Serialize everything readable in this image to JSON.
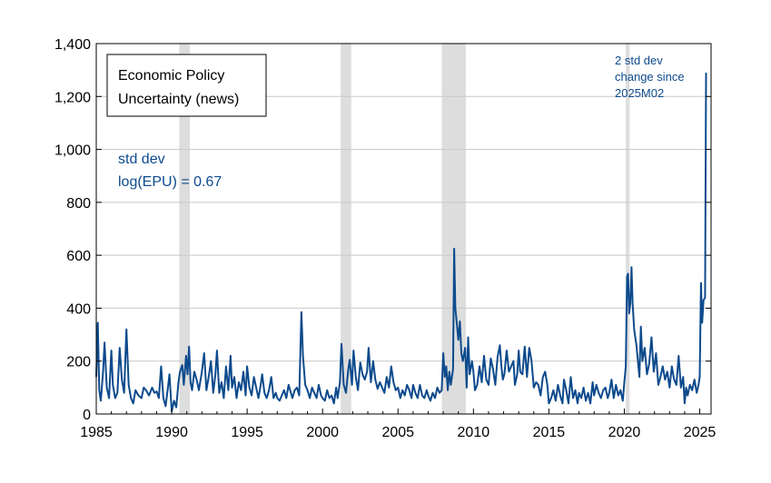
{
  "chart_data": {
    "type": "line",
    "title": "",
    "xlabel": "",
    "ylabel": "",
    "xlim": [
      1985,
      2025.75
    ],
    "ylim": [
      0,
      1400
    ],
    "grid": "horizontal",
    "x_ticks": [
      1985,
      1990,
      1995,
      2000,
      2005,
      2010,
      2015,
      2020,
      2025
    ],
    "x_tick_labels": [
      "1985",
      "1990",
      "1995",
      "2000",
      "2005",
      "2010",
      "2015",
      "2020",
      "2025"
    ],
    "y_ticks": [
      0,
      200,
      400,
      600,
      800,
      1000,
      1200,
      1400
    ],
    "y_tick_labels": [
      "0",
      "200",
      "400",
      "600",
      "800",
      "1,000",
      "1,200",
      "1,400"
    ],
    "legend": {
      "placement": "top-left",
      "lines": [
        "Economic Policy",
        "Uncertainty (news)"
      ]
    },
    "annotations": [
      {
        "lines": [
          "std dev",
          "log(EPU) = 0.67"
        ],
        "placement": "upper-left",
        "color": "#0d4a8c"
      },
      {
        "lines": [
          "2 std dev",
          "change since",
          "2025M02"
        ],
        "placement": "top-right",
        "color": "#0d4a8c"
      }
    ],
    "recession_shading": [
      [
        1990.5,
        1991.2
      ],
      [
        2001.2,
        2001.9
      ],
      [
        2007.9,
        2009.5
      ],
      [
        2020.1,
        2020.35
      ]
    ],
    "series": [
      {
        "color": "#0d4a8c",
        "points": [
          [
            1985.0,
            140
          ],
          [
            1985.1,
            345
          ],
          [
            1985.2,
            90
          ],
          [
            1985.3,
            50
          ],
          [
            1985.45,
            160
          ],
          [
            1985.55,
            270
          ],
          [
            1985.7,
            100
          ],
          [
            1985.85,
            60
          ],
          [
            1986.0,
            240
          ],
          [
            1986.1,
            110
          ],
          [
            1986.25,
            60
          ],
          [
            1986.4,
            80
          ],
          [
            1986.55,
            250
          ],
          [
            1986.7,
            130
          ],
          [
            1986.85,
            80
          ],
          [
            1987.0,
            320
          ],
          [
            1987.15,
            110
          ],
          [
            1987.3,
            60
          ],
          [
            1987.45,
            40
          ],
          [
            1987.6,
            90
          ],
          [
            1987.8,
            70
          ],
          [
            1988.0,
            60
          ],
          [
            1988.15,
            100
          ],
          [
            1988.3,
            90
          ],
          [
            1988.5,
            70
          ],
          [
            1988.7,
            100
          ],
          [
            1988.85,
            80
          ],
          [
            1989.0,
            85
          ],
          [
            1989.15,
            60
          ],
          [
            1989.3,
            180
          ],
          [
            1989.45,
            60
          ],
          [
            1989.6,
            30
          ],
          [
            1989.75,
            100
          ],
          [
            1989.85,
            150
          ],
          [
            1990.0,
            10
          ],
          [
            1990.15,
            50
          ],
          [
            1990.3,
            25
          ],
          [
            1990.45,
            120
          ],
          [
            1990.55,
            160
          ],
          [
            1990.7,
            185
          ],
          [
            1990.8,
            110
          ],
          [
            1990.95,
            220
          ],
          [
            1991.05,
            150
          ],
          [
            1991.15,
            255
          ],
          [
            1991.25,
            120
          ],
          [
            1991.35,
            90
          ],
          [
            1991.5,
            160
          ],
          [
            1991.65,
            130
          ],
          [
            1991.8,
            90
          ],
          [
            1992.0,
            160
          ],
          [
            1992.15,
            230
          ],
          [
            1992.3,
            90
          ],
          [
            1992.45,
            140
          ],
          [
            1992.6,
            200
          ],
          [
            1992.75,
            80
          ],
          [
            1992.9,
            150
          ],
          [
            1993.0,
            240
          ],
          [
            1993.15,
            80
          ],
          [
            1993.3,
            120
          ],
          [
            1993.45,
            60
          ],
          [
            1993.6,
            180
          ],
          [
            1993.75,
            90
          ],
          [
            1993.9,
            220
          ],
          [
            1994.0,
            100
          ],
          [
            1994.15,
            140
          ],
          [
            1994.3,
            60
          ],
          [
            1994.45,
            120
          ],
          [
            1994.6,
            90
          ],
          [
            1994.75,
            160
          ],
          [
            1994.9,
            70
          ],
          [
            1995.0,
            180
          ],
          [
            1995.15,
            100
          ],
          [
            1995.3,
            70
          ],
          [
            1995.45,
            140
          ],
          [
            1995.6,
            100
          ],
          [
            1995.75,
            60
          ],
          [
            1995.9,
            110
          ],
          [
            1996.0,
            150
          ],
          [
            1996.15,
            80
          ],
          [
            1996.3,
            60
          ],
          [
            1996.45,
            90
          ],
          [
            1996.6,
            140
          ],
          [
            1996.75,
            60
          ],
          [
            1996.9,
            80
          ],
          [
            1997.0,
            60
          ],
          [
            1997.15,
            50
          ],
          [
            1997.3,
            70
          ],
          [
            1997.45,
            90
          ],
          [
            1997.6,
            60
          ],
          [
            1997.75,
            110
          ],
          [
            1997.9,
            80
          ],
          [
            1998.0,
            60
          ],
          [
            1998.15,
            90
          ],
          [
            1998.3,
            100
          ],
          [
            1998.45,
            70
          ],
          [
            1998.6,
            385
          ],
          [
            1998.7,
            220
          ],
          [
            1998.85,
            110
          ],
          [
            1999.0,
            90
          ],
          [
            1999.15,
            60
          ],
          [
            1999.3,
            100
          ],
          [
            1999.45,
            80
          ],
          [
            1999.6,
            60
          ],
          [
            1999.75,
            110
          ],
          [
            1999.9,
            70
          ],
          [
            2000.0,
            60
          ],
          [
            2000.15,
            50
          ],
          [
            2000.3,
            90
          ],
          [
            2000.45,
            60
          ],
          [
            2000.6,
            70
          ],
          [
            2000.75,
            40
          ],
          [
            2000.9,
            100
          ],
          [
            2001.0,
            60
          ],
          [
            2001.15,
            120
          ],
          [
            2001.25,
            265
          ],
          [
            2001.4,
            110
          ],
          [
            2001.55,
            80
          ],
          [
            2001.7,
            165
          ],
          [
            2001.8,
            205
          ],
          [
            2001.95,
            110
          ],
          [
            2002.05,
            240
          ],
          [
            2002.2,
            140
          ],
          [
            2002.35,
            90
          ],
          [
            2002.5,
            195
          ],
          [
            2002.65,
            150
          ],
          [
            2002.8,
            130
          ],
          [
            2002.95,
            160
          ],
          [
            2003.05,
            250
          ],
          [
            2003.2,
            120
          ],
          [
            2003.35,
            200
          ],
          [
            2003.5,
            130
          ],
          [
            2003.65,
            95
          ],
          [
            2003.8,
            120
          ],
          [
            2003.95,
            100
          ],
          [
            2004.1,
            80
          ],
          [
            2004.25,
            140
          ],
          [
            2004.4,
            100
          ],
          [
            2004.55,
            180
          ],
          [
            2004.7,
            120
          ],
          [
            2004.85,
            90
          ],
          [
            2005.0,
            100
          ],
          [
            2005.15,
            60
          ],
          [
            2005.3,
            90
          ],
          [
            2005.45,
            70
          ],
          [
            2005.6,
            110
          ],
          [
            2005.75,
            90
          ],
          [
            2005.9,
            60
          ],
          [
            2006.0,
            110
          ],
          [
            2006.15,
            80
          ],
          [
            2006.3,
            60
          ],
          [
            2006.45,
            110
          ],
          [
            2006.6,
            70
          ],
          [
            2006.75,
            60
          ],
          [
            2006.9,
            90
          ],
          [
            2007.0,
            70
          ],
          [
            2007.15,
            50
          ],
          [
            2007.3,
            80
          ],
          [
            2007.45,
            60
          ],
          [
            2007.6,
            100
          ],
          [
            2007.75,
            80
          ],
          [
            2007.9,
            90
          ],
          [
            2008.0,
            230
          ],
          [
            2008.1,
            140
          ],
          [
            2008.2,
            180
          ],
          [
            2008.3,
            90
          ],
          [
            2008.4,
            160
          ],
          [
            2008.5,
            110
          ],
          [
            2008.65,
            170
          ],
          [
            2008.72,
            625
          ],
          [
            2008.8,
            400
          ],
          [
            2008.9,
            340
          ],
          [
            2009.0,
            280
          ],
          [
            2009.1,
            350
          ],
          [
            2009.2,
            230
          ],
          [
            2009.3,
            200
          ],
          [
            2009.45,
            250
          ],
          [
            2009.55,
            100
          ],
          [
            2009.65,
            290
          ],
          [
            2009.75,
            150
          ],
          [
            2009.9,
            200
          ],
          [
            2010.0,
            160
          ],
          [
            2010.1,
            90
          ],
          [
            2010.25,
            110
          ],
          [
            2010.4,
            180
          ],
          [
            2010.55,
            120
          ],
          [
            2010.7,
            220
          ],
          [
            2010.85,
            130
          ],
          [
            2011.0,
            110
          ],
          [
            2011.15,
            210
          ],
          [
            2011.3,
            170
          ],
          [
            2011.45,
            110
          ],
          [
            2011.6,
            215
          ],
          [
            2011.75,
            260
          ],
          [
            2011.85,
            180
          ],
          [
            2011.95,
            130
          ],
          [
            2012.05,
            150
          ],
          [
            2012.2,
            240
          ],
          [
            2012.35,
            160
          ],
          [
            2012.5,
            180
          ],
          [
            2012.65,
            200
          ],
          [
            2012.75,
            110
          ],
          [
            2012.9,
            150
          ],
          [
            2013.0,
            240
          ],
          [
            2013.1,
            160
          ],
          [
            2013.25,
            150
          ],
          [
            2013.4,
            255
          ],
          [
            2013.55,
            140
          ],
          [
            2013.7,
            250
          ],
          [
            2013.85,
            200
          ],
          [
            2014.0,
            100
          ],
          [
            2014.15,
            120
          ],
          [
            2014.3,
            110
          ],
          [
            2014.45,
            70
          ],
          [
            2014.6,
            140
          ],
          [
            2014.75,
            160
          ],
          [
            2014.9,
            110
          ],
          [
            2015.0,
            40
          ],
          [
            2015.15,
            60
          ],
          [
            2015.3,
            90
          ],
          [
            2015.45,
            50
          ],
          [
            2015.6,
            110
          ],
          [
            2015.75,
            70
          ],
          [
            2015.9,
            40
          ],
          [
            2016.0,
            130
          ],
          [
            2016.15,
            90
          ],
          [
            2016.3,
            40
          ],
          [
            2016.45,
            140
          ],
          [
            2016.6,
            60
          ],
          [
            2016.75,
            90
          ],
          [
            2016.9,
            40
          ],
          [
            2017.0,
            80
          ],
          [
            2017.15,
            60
          ],
          [
            2017.3,
            100
          ],
          [
            2017.45,
            50
          ],
          [
            2017.6,
            80
          ],
          [
            2017.75,
            40
          ],
          [
            2017.9,
            120
          ],
          [
            2018.0,
            70
          ],
          [
            2018.15,
            110
          ],
          [
            2018.3,
            80
          ],
          [
            2018.45,
            60
          ],
          [
            2018.6,
            90
          ],
          [
            2018.75,
            100
          ],
          [
            2018.9,
            60
          ],
          [
            2019.0,
            80
          ],
          [
            2019.15,
            130
          ],
          [
            2019.3,
            60
          ],
          [
            2019.45,
            110
          ],
          [
            2019.6,
            70
          ],
          [
            2019.75,
            90
          ],
          [
            2019.9,
            50
          ],
          [
            2020.0,
            120
          ],
          [
            2020.1,
            180
          ],
          [
            2020.18,
            520
          ],
          [
            2020.25,
            530
          ],
          [
            2020.32,
            380
          ],
          [
            2020.4,
            420
          ],
          [
            2020.48,
            555
          ],
          [
            2020.55,
            420
          ],
          [
            2020.65,
            320
          ],
          [
            2020.8,
            260
          ],
          [
            2021.0,
            140
          ],
          [
            2021.1,
            330
          ],
          [
            2021.2,
            200
          ],
          [
            2021.35,
            250
          ],
          [
            2021.5,
            150
          ],
          [
            2021.65,
            190
          ],
          [
            2021.8,
            290
          ],
          [
            2021.95,
            160
          ],
          [
            2022.1,
            230
          ],
          [
            2022.25,
            110
          ],
          [
            2022.4,
            140
          ],
          [
            2022.55,
            180
          ],
          [
            2022.7,
            130
          ],
          [
            2022.85,
            160
          ],
          [
            2023.0,
            100
          ],
          [
            2023.15,
            180
          ],
          [
            2023.3,
            130
          ],
          [
            2023.45,
            110
          ],
          [
            2023.6,
            220
          ],
          [
            2023.75,
            100
          ],
          [
            2023.9,
            140
          ],
          [
            2024.0,
            40
          ],
          [
            2024.1,
            100
          ],
          [
            2024.2,
            70
          ],
          [
            2024.35,
            110
          ],
          [
            2024.5,
            90
          ],
          [
            2024.65,
            130
          ],
          [
            2024.8,
            80
          ],
          [
            2024.92,
            110
          ],
          [
            2025.0,
            140
          ],
          [
            2025.08,
            495
          ],
          [
            2025.16,
            345
          ],
          [
            2025.25,
            430
          ],
          [
            2025.35,
            440
          ],
          [
            2025.42,
            1290
          ]
        ]
      }
    ]
  }
}
